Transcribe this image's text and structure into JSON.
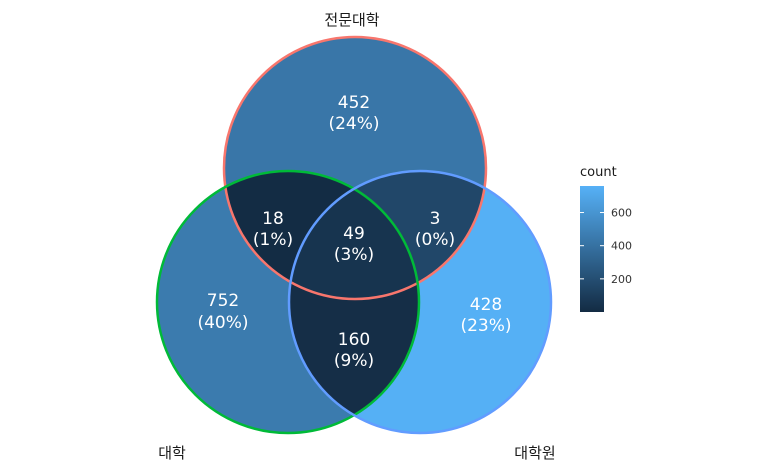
{
  "chart_data": {
    "type": "venn",
    "sets": [
      {
        "id": "A",
        "name": "전문대학",
        "outline_color": "#F8766D"
      },
      {
        "id": "B",
        "name": "대학",
        "outline_color": "#00BA38"
      },
      {
        "id": "C",
        "name": "대학원",
        "outline_color": "#619CFF"
      }
    ],
    "regions": [
      {
        "sets": [
          "A"
        ],
        "count": "452",
        "percent": "(24%)"
      },
      {
        "sets": [
          "B"
        ],
        "count": "752",
        "percent": "(40%)"
      },
      {
        "sets": [
          "C"
        ],
        "count": "428",
        "percent": "(23%)"
      },
      {
        "sets": [
          "A",
          "B"
        ],
        "count": "18",
        "percent": "(1%)"
      },
      {
        "sets": [
          "A",
          "C"
        ],
        "count": "3",
        "percent": "(0%)"
      },
      {
        "sets": [
          "B",
          "C"
        ],
        "count": "160",
        "percent": "(9%)"
      },
      {
        "sets": [
          "A",
          "B",
          "C"
        ],
        "count": "49",
        "percent": "(3%)"
      }
    ],
    "legend": {
      "title": "count",
      "ticks": [
        "200",
        "400",
        "600"
      ],
      "tick_values": [
        200,
        400,
        600
      ],
      "range": [
        0,
        760
      ],
      "low_color": "#132B43",
      "high_color": "#56B1F7",
      "placement": "right"
    }
  }
}
